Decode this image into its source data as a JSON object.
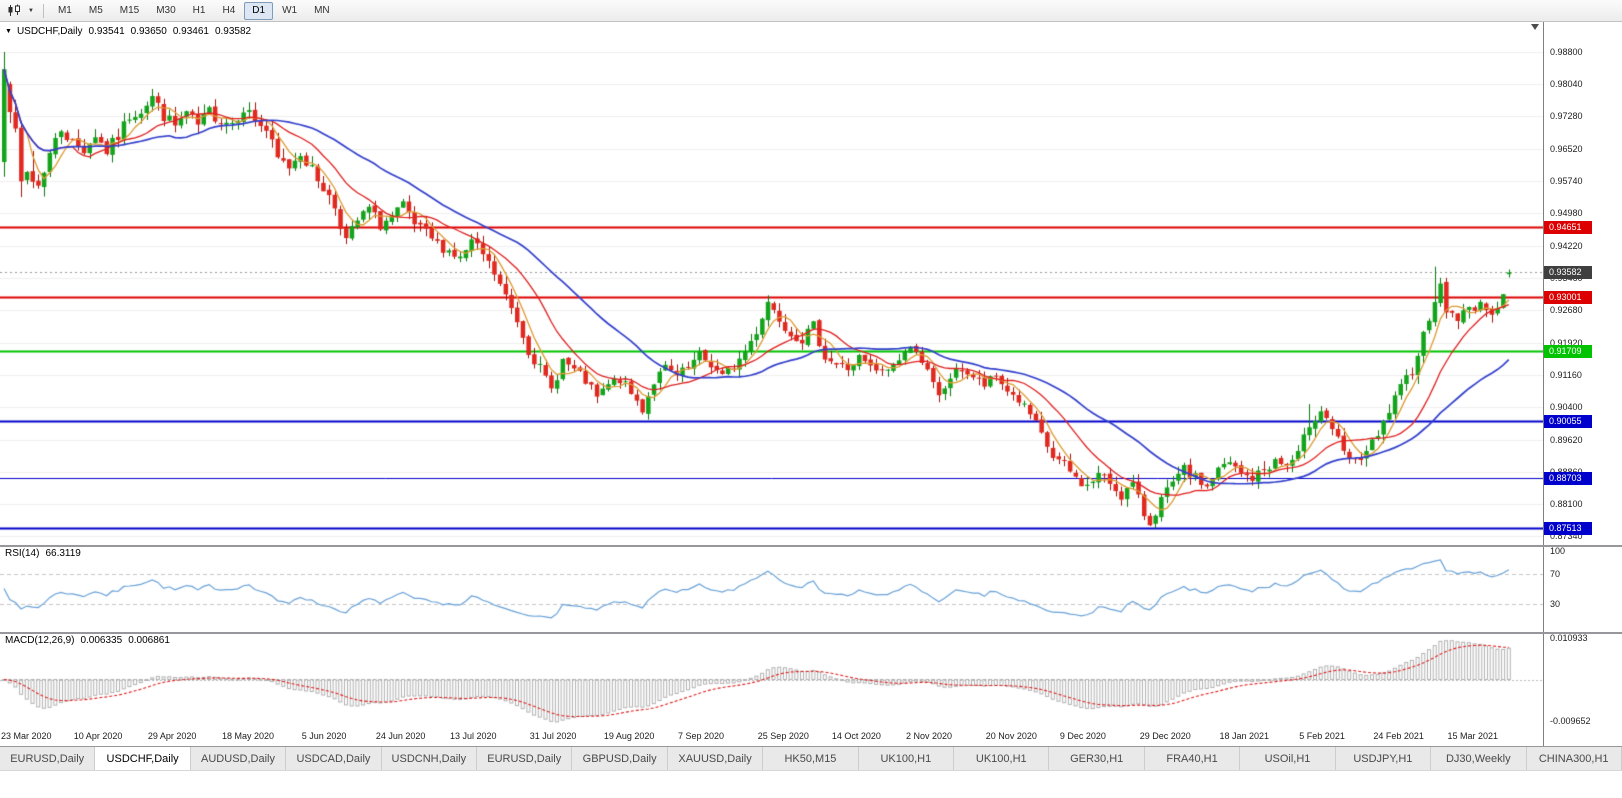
{
  "toolbar": {
    "chart_type_icon": "candlestick-chart-icon",
    "timeframes": [
      "M1",
      "M5",
      "M15",
      "M30",
      "H1",
      "H4",
      "D1",
      "W1",
      "MN"
    ],
    "active_timeframe": "D1"
  },
  "chart": {
    "symbol_title": "USDCHF,Daily",
    "ohlc": {
      "open": "0.93541",
      "high": "0.93650",
      "low": "0.93461",
      "close": "0.93582"
    },
    "price_axis_labels": [
      "0.98800",
      "0.98040",
      "0.97280",
      "0.96520",
      "0.95740",
      "0.94980",
      "0.94220",
      "0.93460",
      "0.92680",
      "0.91920",
      "0.91160",
      "0.90400",
      "0.89620",
      "0.88860",
      "0.88100",
      "0.87340"
    ],
    "price_range": {
      "top": 0.9952,
      "bottom": 0.8712
    },
    "current_price": {
      "value": 0.93582,
      "label": "0.93582",
      "badge_color": "#3f3f3f"
    },
    "hlines": [
      {
        "value": 0.94651,
        "label": "0.94651",
        "color": "#dd0000",
        "width": 2
      },
      {
        "value": 0.93001,
        "label": "0.93001",
        "color": "#dd0000",
        "width": 2
      },
      {
        "value": 0.91709,
        "label": "0.91709",
        "color": "#00c300",
        "width": 2
      },
      {
        "value": 0.90055,
        "label": "0.90055",
        "color": "#0000cc",
        "width": 2
      },
      {
        "value": 0.88703,
        "label": "0.88703",
        "color": "#0000cc",
        "width": 1
      },
      {
        "value": 0.87513,
        "label": "0.87513",
        "color": "#0000cc",
        "width": 2
      }
    ]
  },
  "rsi": {
    "title": "RSI(14)",
    "value": "66.3119",
    "line_color": "#69a2d8",
    "axis_labels": [
      {
        "text": "100",
        "value": 100
      },
      {
        "text": "70",
        "value": 70
      },
      {
        "text": "30",
        "value": 30
      }
    ],
    "levels": [
      70,
      30
    ]
  },
  "macd": {
    "title": "MACD(12,26,9)",
    "macd_value": "0.006335",
    "signal_value": "0.006861",
    "histogram_color": "#b2b2b2",
    "signal_color": "#e02020",
    "axis_labels": [
      {
        "text": "0.010933",
        "position": "top"
      },
      {
        "text": "-0.009652",
        "position": "bottom"
      }
    ]
  },
  "date_axis": {
    "labels": [
      {
        "text": "23 Mar 2020",
        "day": 0
      },
      {
        "text": "10 Apr 2020",
        "day": 14
      },
      {
        "text": "29 Apr 2020",
        "day": 27
      },
      {
        "text": "18 May 2020",
        "day": 40
      },
      {
        "text": "5 Jun 2020",
        "day": 54
      },
      {
        "text": "24 Jun 2020",
        "day": 67
      },
      {
        "text": "13 Jul 2020",
        "day": 80
      },
      {
        "text": "31 Jul 2020",
        "day": 94
      },
      {
        "text": "19 Aug 2020",
        "day": 107
      },
      {
        "text": "7 Sep 2020",
        "day": 120
      },
      {
        "text": "25 Sep 2020",
        "day": 134
      },
      {
        "text": "14 Oct 2020",
        "day": 147
      },
      {
        "text": "2 Nov 2020",
        "day": 160
      },
      {
        "text": "20 Nov 2020",
        "day": 174
      },
      {
        "text": "9 Dec 2020",
        "day": 187
      },
      {
        "text": "29 Dec 2020",
        "day": 201
      },
      {
        "text": "18 Jan 2021",
        "day": 215
      },
      {
        "text": "5 Feb 2021",
        "day": 229
      },
      {
        "text": "24 Feb 2021",
        "day": 242
      },
      {
        "text": "15 Mar 2021",
        "day": 255
      }
    ]
  },
  "tabs": [
    {
      "label": "EURUSD,Daily",
      "active": false
    },
    {
      "label": "USDCHF,Daily",
      "active": true
    },
    {
      "label": "AUDUSD,Daily",
      "active": false
    },
    {
      "label": "USDCAD,Daily",
      "active": false
    },
    {
      "label": "USDCNH,Daily",
      "active": false
    },
    {
      "label": "EURUSD,Daily",
      "active": false
    },
    {
      "label": "GBPUSD,Daily",
      "active": false
    },
    {
      "label": "XAUUSD,Daily",
      "active": false
    },
    {
      "label": "HK50,M15",
      "active": false
    },
    {
      "label": "UK100,H1",
      "active": false
    },
    {
      "label": "UK100,H1",
      "active": false
    },
    {
      "label": "GER30,H1",
      "active": false
    },
    {
      "label": "FRA40,H1",
      "active": false
    },
    {
      "label": "USOil,H1",
      "active": false
    },
    {
      "label": "USDJPY,H1",
      "active": false
    },
    {
      "label": "DJ30,Weekly",
      "active": false
    },
    {
      "label": "CHINA300,H1",
      "active": false
    }
  ],
  "chart_data": {
    "type": "candlestick",
    "symbol": "USDCHF",
    "timeframe": "Daily",
    "num_candles": 265,
    "seed": 7,
    "style": {
      "up_fill": "#14a41c",
      "up_stroke": "#0c7a10",
      "down_fill": "#e0291f",
      "down_stroke": "#a31410",
      "grid": "#efefef",
      "current_line": "#9a9a9a"
    },
    "moving_averages": [
      {
        "period": 5,
        "color": "#dd9b33",
        "width": 1.3
      },
      {
        "period": 13,
        "color": "#e02020",
        "width": 1.3
      },
      {
        "period": 30,
        "color": "#3340cc",
        "width": 1.7
      }
    ],
    "rsi_period": 14,
    "macd_params": {
      "fast": 12,
      "slow": 26,
      "signal": 9
    },
    "volatility": [
      {
        "until": 6,
        "v": 0.009
      },
      {
        "until": 60,
        "v": 0.0038
      },
      {
        "until": 230,
        "v": 0.0032
      },
      {
        "until": 265,
        "v": 0.0036
      }
    ],
    "close_anchors": [
      [
        0,
        0.984
      ],
      [
        1,
        0.977
      ],
      [
        2,
        0.9665
      ],
      [
        3,
        0.956
      ],
      [
        4,
        0.9595
      ],
      [
        6,
        0.9565
      ],
      [
        8,
        0.964
      ],
      [
        10,
        0.97
      ],
      [
        12,
        0.9665
      ],
      [
        14,
        0.965
      ],
      [
        16,
        0.9685
      ],
      [
        18,
        0.9645
      ],
      [
        20,
        0.968
      ],
      [
        22,
        0.973
      ],
      [
        24,
        0.9745
      ],
      [
        26,
        0.9775
      ],
      [
        28,
        0.973
      ],
      [
        30,
        0.9705
      ],
      [
        32,
        0.9735
      ],
      [
        34,
        0.9705
      ],
      [
        36,
        0.974
      ],
      [
        38,
        0.972
      ],
      [
        40,
        0.9715
      ],
      [
        42,
        0.975
      ],
      [
        44,
        0.972
      ],
      [
        46,
        0.9695
      ],
      [
        48,
        0.9625
      ],
      [
        50,
        0.961
      ],
      [
        52,
        0.9645
      ],
      [
        54,
        0.96
      ],
      [
        56,
        0.956
      ],
      [
        58,
        0.9515
      ],
      [
        60,
        0.9435
      ],
      [
        62,
        0.948
      ],
      [
        64,
        0.951
      ],
      [
        66,
        0.947
      ],
      [
        68,
        0.949
      ],
      [
        70,
        0.9515
      ],
      [
        72,
        0.947
      ],
      [
        74,
        0.945
      ],
      [
        76,
        0.9425
      ],
      [
        78,
        0.941
      ],
      [
        80,
        0.939
      ],
      [
        82,
        0.943
      ],
      [
        84,
        0.94
      ],
      [
        86,
        0.9355
      ],
      [
        88,
        0.93
      ],
      [
        90,
        0.9245
      ],
      [
        92,
        0.9175
      ],
      [
        94,
        0.913
      ],
      [
        96,
        0.908
      ],
      [
        98,
        0.915
      ],
      [
        100,
        0.9125
      ],
      [
        102,
        0.91
      ],
      [
        104,
        0.906
      ],
      [
        106,
        0.909
      ],
      [
        108,
        0.9105
      ],
      [
        110,
        0.907
      ],
      [
        112,
        0.9035
      ],
      [
        114,
        0.91
      ],
      [
        116,
        0.913
      ],
      [
        118,
        0.911
      ],
      [
        120,
        0.913
      ],
      [
        122,
        0.916
      ],
      [
        124,
        0.914
      ],
      [
        126,
        0.911
      ],
      [
        128,
        0.9135
      ],
      [
        130,
        0.917
      ],
      [
        132,
        0.922
      ],
      [
        134,
        0.929
      ],
      [
        136,
        0.925
      ],
      [
        138,
        0.9215
      ],
      [
        140,
        0.92
      ],
      [
        142,
        0.923
      ],
      [
        144,
        0.916
      ],
      [
        146,
        0.914
      ],
      [
        148,
        0.913
      ],
      [
        150,
        0.9155
      ],
      [
        152,
        0.913
      ],
      [
        154,
        0.912
      ],
      [
        156,
        0.914
      ],
      [
        158,
        0.917
      ],
      [
        160,
        0.918
      ],
      [
        162,
        0.912
      ],
      [
        164,
        0.906
      ],
      [
        166,
        0.911
      ],
      [
        168,
        0.913
      ],
      [
        170,
        0.911
      ],
      [
        172,
        0.909
      ],
      [
        174,
        0.911
      ],
      [
        176,
        0.908
      ],
      [
        178,
        0.9055
      ],
      [
        180,
        0.902
      ],
      [
        182,
        0.897
      ],
      [
        184,
        0.892
      ],
      [
        186,
        0.89
      ],
      [
        188,
        0.887
      ],
      [
        190,
        0.885
      ],
      [
        192,
        0.888
      ],
      [
        194,
        0.886
      ],
      [
        196,
        0.883
      ],
      [
        198,
        0.8855
      ],
      [
        200,
        0.8785
      ],
      [
        201,
        0.8765
      ],
      [
        203,
        0.882
      ],
      [
        205,
        0.8855
      ],
      [
        207,
        0.889
      ],
      [
        209,
        0.887
      ],
      [
        211,
        0.885
      ],
      [
        213,
        0.889
      ],
      [
        215,
        0.8905
      ],
      [
        217,
        0.888
      ],
      [
        219,
        0.887
      ],
      [
        221,
        0.889
      ],
      [
        223,
        0.891
      ],
      [
        225,
        0.89
      ],
      [
        227,
        0.8925
      ],
      [
        229,
        0.9
      ],
      [
        231,
        0.9035
      ],
      [
        233,
        0.899
      ],
      [
        235,
        0.8925
      ],
      [
        237,
        0.8905
      ],
      [
        239,
        0.8935
      ],
      [
        241,
        0.8965
      ],
      [
        243,
        0.903
      ],
      [
        245,
        0.908
      ],
      [
        247,
        0.913
      ],
      [
        249,
        0.921
      ],
      [
        251,
        0.93
      ],
      [
        252,
        0.932
      ],
      [
        253,
        0.927
      ],
      [
        255,
        0.925
      ],
      [
        257,
        0.927
      ],
      [
        259,
        0.929
      ],
      [
        260,
        0.9255
      ],
      [
        261,
        0.927
      ],
      [
        262,
        0.9285
      ],
      [
        263,
        0.931
      ],
      [
        264,
        0.93582
      ]
    ],
    "overrides": [
      {
        "i": 0,
        "open": 0.962,
        "high": 0.9881,
        "low": 0.9585,
        "close": 0.984
      },
      {
        "i": 134,
        "high": 0.9304
      },
      {
        "i": 201,
        "low": 0.8757
      },
      {
        "i": 229,
        "high": 0.9046
      },
      {
        "i": 251,
        "high": 0.9372
      },
      {
        "i": 264,
        "open": 0.93541,
        "high": 0.9365,
        "low": 0.93461,
        "close": 0.93582
      }
    ]
  }
}
